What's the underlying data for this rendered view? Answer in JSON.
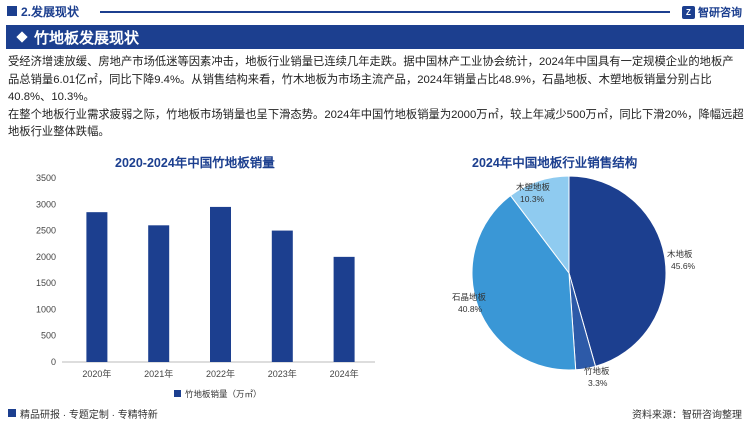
{
  "header": {
    "section_title": "2.发展现状",
    "brand": "智研咨询",
    "brand_logo": "zhiyan-logo-icon"
  },
  "banner": {
    "title": "竹地板发展现状"
  },
  "body": {
    "para1": "受经济增速放缓、房地产市场低迷等因素冲击，地板行业销量已连续几年走跌。据中国林产工业协会统计，2024年中国具有一定规模企业的地板产品总销量6.01亿㎡，同比下降9.4%。从销售结构来看，竹木地板为市场主流产品，2024年销量占比48.9%，石晶地板、木塑地板销量分别占比40.8%、10.3%。",
    "para2": "在整个地板行业需求疲弱之际，竹地板市场销量也呈下滑态势。2024年中国竹地板销量为2000万㎡，较上年减少500万㎡，同比下滑20%，降幅远超地板行业整体跌幅。"
  },
  "chart_data": [
    {
      "type": "bar",
      "title": "2020-2024年中国竹地板销量",
      "categories": [
        "2020年",
        "2021年",
        "2022年",
        "2023年",
        "2024年"
      ],
      "series": [
        {
          "name": "竹地板销量（万㎡）",
          "values": [
            2850,
            2600,
            2950,
            2500,
            2000
          ]
        }
      ],
      "yticks": [
        "0",
        "500",
        "1000",
        "1500",
        "2000",
        "2500",
        "3000",
        "3500"
      ],
      "ylim": [
        0,
        3500
      ],
      "grid": false,
      "legend": "bottom",
      "color": "#1c3f8f"
    },
    {
      "type": "pie",
      "title": "2024年中国地板行业销售结构",
      "slices": [
        {
          "label": "木地板",
          "value": 45.6,
          "value_label": "45.6%",
          "color": "#1c3f8f"
        },
        {
          "label": "竹地板",
          "value": 3.3,
          "value_label": "3.3%",
          "color": "#2d5aa8"
        },
        {
          "label": "石晶地板",
          "value": 40.8,
          "value_label": "40.8%",
          "color": "#3a97d6"
        },
        {
          "label": "木塑地板",
          "value": 10.3,
          "value_label": "10.3%",
          "color": "#8fcbf0"
        }
      ]
    }
  ],
  "footer": {
    "tags": "精品研报 · 专题定制 · 专精特新",
    "source": "资料来源：智研咨询整理"
  }
}
